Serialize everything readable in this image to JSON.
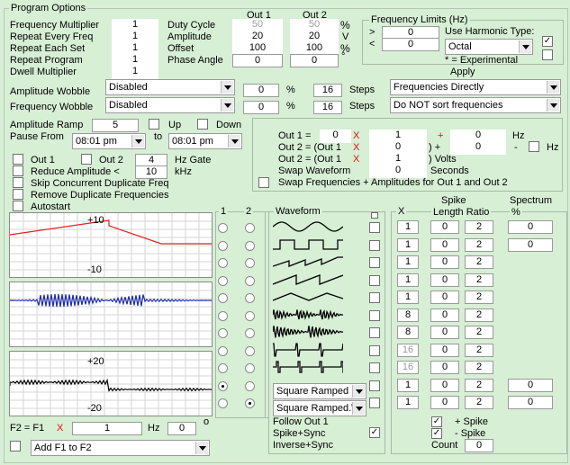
{
  "title": "Program Options",
  "left_params": [
    {
      "label": "Frequency Multiplier",
      "value": "1"
    },
    {
      "label": "Repeat Every Freq",
      "value": "1"
    },
    {
      "label": "Repeat Each Set",
      "value": "1"
    },
    {
      "label": "Repeat Program",
      "value": "1"
    },
    {
      "label": "Dwell Multiplier",
      "value": "1"
    }
  ],
  "out_headers": {
    "out1": "Out 1",
    "out2": "Out 2"
  },
  "out_params": [
    {
      "label": "Duty Cycle",
      "out1": "50",
      "out2": "50",
      "unit": "%",
      "disabled": true
    },
    {
      "label": "Amplitude",
      "out1": "20",
      "out2": "20",
      "unit": "V",
      "disabled": false
    },
    {
      "label": "Offset",
      "out1": "100",
      "out2": "100",
      "unit": "%",
      "disabled": false
    },
    {
      "label": "Phase Angle",
      "out1": "0",
      "out2": "0",
      "unit": "°",
      "disabled": false
    }
  ],
  "freq_limits": {
    "title": "Frequency Limits (Hz)",
    "gt_label": ">",
    "gt_value": "0",
    "lt_label": "<",
    "lt_value": "0",
    "harmonic_label": "Use Harmonic Type:",
    "harmonic_value": "Octal",
    "experimental_note": "* = Experimental",
    "check1": true,
    "check2": false
  },
  "apply_label": "Apply",
  "wobble": [
    {
      "label": "Amplitude Wobble",
      "select": "Disabled",
      "value": "0",
      "unit": "%",
      "steps": "16",
      "steps_label": "Steps",
      "apply": "Frequencies Directly"
    },
    {
      "label": "Frequency Wobble",
      "select": "Disabled",
      "value": "0",
      "unit": "%",
      "steps": "16",
      "steps_label": "Steps",
      "apply": "Do NOT sort frequencies"
    }
  ],
  "ramp": {
    "label": "Amplitude Ramp",
    "value": "5",
    "up": "Up",
    "down": "Down"
  },
  "pause": {
    "label": "Pause From",
    "from": "08:01 pm",
    "to_label": "to",
    "to": "08:01 pm"
  },
  "gate": {
    "out1": "Out 1",
    "out2": "Out 2",
    "value": "4",
    "unit": "Hz Gate"
  },
  "reduce": {
    "label": "Reduce Amplitude <",
    "value": "10",
    "unit": "kHz"
  },
  "options": [
    "Skip Concurrent Duplicate Freq",
    "Remove Duplicate Frequencies",
    "Autostart"
  ],
  "out_eq": {
    "rows": [
      {
        "label": "Out 1 =",
        "a": "0",
        "op1": "X",
        "b": "1",
        "op2": "+",
        "c": "0",
        "unit": "Hz"
      },
      {
        "label": "Out 2 = (Out 1",
        "a": "0",
        "op1": "X",
        "b": "0",
        "op2": ") +",
        "c": "0",
        "unit": "-"
      },
      {
        "label": "Out 2 = (Out 1",
        "a": "",
        "op1": "X",
        "b": "1",
        "op2": ") Volts",
        "c": "",
        "unit": ""
      }
    ],
    "hz_label": "Hz",
    "swap_waveform": {
      "label": "Swap Waveform",
      "value": "0",
      "unit": "Seconds"
    },
    "swap_label": "Swap Frequencies + Amplitudes for Out 1 and Out 2"
  },
  "plots": [
    {
      "ymax": "+10",
      "ymin": "-10",
      "color": "#e02020"
    },
    {
      "ymax": "",
      "ymin": "",
      "color": "#1a2aa8"
    },
    {
      "ymax": "+20",
      "ymin": "-20",
      "color": "#000000"
    }
  ],
  "col_labels": {
    "c1": "1",
    "c2": "2",
    "waveform": "Waveform",
    "x": "X",
    "spike": "Spike",
    "length_ratio": "Length Ratio",
    "spectrum": "Spectrum",
    "pct": "%"
  },
  "waveforms": [
    {
      "name": "sine-wave-icon",
      "x": "1",
      "len": "0",
      "ratio": "2",
      "spec": "0",
      "xdis": false
    },
    {
      "name": "square-wave-icon",
      "x": "1",
      "len": "0",
      "ratio": "2",
      "spec": "0",
      "xdis": false
    },
    {
      "name": "sawtooth-wave-icon",
      "x": "1",
      "len": "0",
      "ratio": "2",
      "spec": "",
      "xdis": false
    },
    {
      "name": "reverse-sawtooth-icon",
      "x": "1",
      "len": "0",
      "ratio": "2",
      "spec": "",
      "xdis": false
    },
    {
      "name": "triangle-wave-icon",
      "x": "1",
      "len": "0",
      "ratio": "2",
      "spec": "",
      "xdis": false
    },
    {
      "name": "damped-sine-icon",
      "x": "8",
      "len": "0",
      "ratio": "2",
      "spec": "",
      "xdis": false
    },
    {
      "name": "damped-ramp-icon",
      "x": "8",
      "len": "0",
      "ratio": "2",
      "spec": "",
      "xdis": false
    },
    {
      "name": "spike-burst-icon",
      "x": "16",
      "len": "0",
      "ratio": "2",
      "spec": "",
      "xdis": true
    },
    {
      "name": "square-burst-icon",
      "x": "16",
      "len": "0",
      "ratio": "2",
      "spec": "",
      "xdis": true
    },
    {
      "name": "custom-1",
      "x": "1",
      "len": "0",
      "ratio": "2",
      "spec": "0",
      "xdis": false
    },
    {
      "name": "custom-2",
      "x": "1",
      "len": "0",
      "ratio": "2",
      "spec": "0",
      "xdis": false
    }
  ],
  "custom_selects": [
    "Square Ramped",
    "Square Ramped.W"
  ],
  "follow": {
    "follow_out1": "Follow Out 1",
    "spike_sync": "Spike+Sync",
    "inverse_sync": "Inverse+Sync"
  },
  "spike_opts": {
    "plus": "+ Spike",
    "minus": "- Spike",
    "count_label": "Count",
    "count": "0"
  },
  "f2": {
    "label": "F2 = F1",
    "op": "X",
    "value": "1",
    "unit": "Hz",
    "hz_value": "0",
    "deg": "o",
    "select": "Add F1 to F2"
  }
}
